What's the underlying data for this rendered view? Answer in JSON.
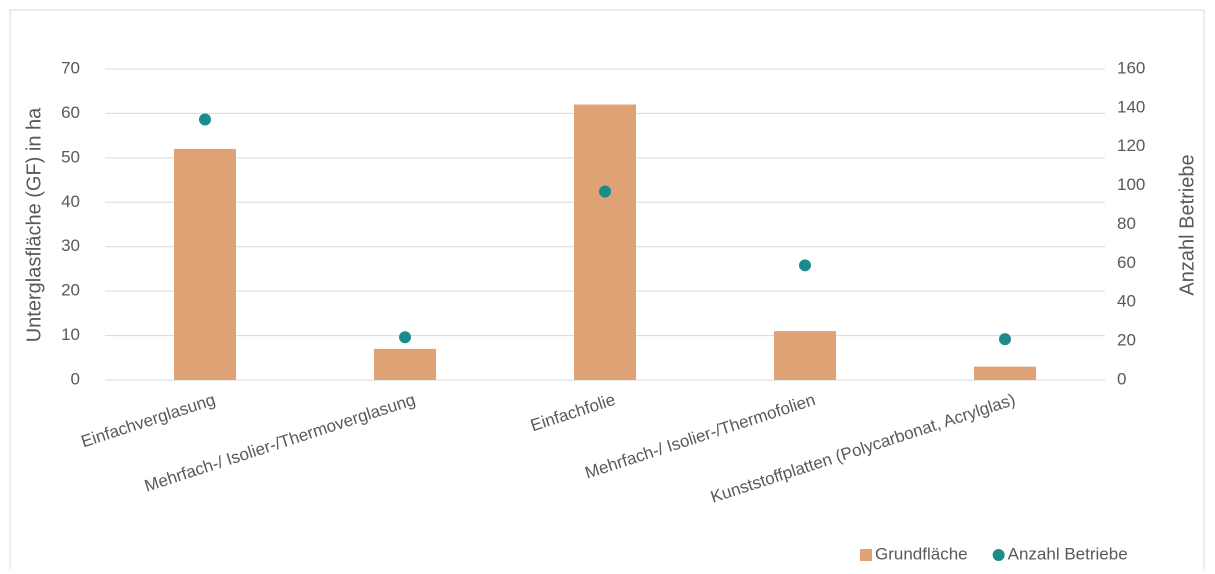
{
  "chart_data": {
    "type": "bar",
    "categories": [
      "Einfachverglasung",
      "Mehrfach-/ Isolier-/Thermoverglasung",
      "Einfachfolie",
      "Mehrfach-/ Isolier-/Thermofolien",
      "Kunststoffplatten (Polycarbonat, Acrylglas)"
    ],
    "series": [
      {
        "name": "Grundfläche",
        "color": "#dea275",
        "values": [
          52,
          7,
          62,
          11,
          3
        ],
        "kind": "bar"
      },
      {
        "name": "Anzahl Betriebe",
        "color": "#1b8b8b",
        "values": [
          134,
          22,
          97,
          59,
          21
        ],
        "kind": "dot",
        "axis": "y2"
      }
    ],
    "ylabel": "Unterglasfläche (GF) in ha",
    "y2label": "Anzahl Betriebe",
    "ylim": [
      0,
      70
    ],
    "yticks": [
      0,
      10,
      20,
      30,
      40,
      50,
      60,
      70
    ],
    "y2lim": [
      0,
      160
    ],
    "y2ticks": [
      0,
      20,
      40,
      60,
      80,
      100,
      120,
      140,
      160
    ],
    "grid": true,
    "legend": "bottom-right"
  }
}
